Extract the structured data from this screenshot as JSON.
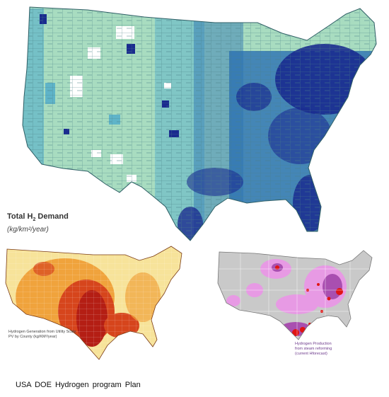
{
  "main_map": {
    "legend_title": "Total H",
    "legend_subscript": "2",
    "legend_title_suffix": " Demand",
    "legend_unit": "(kg/km²/year)",
    "colors": {
      "lowest": "#a8dcc0",
      "low": "#5fb4c9",
      "mid": "#2a70b3",
      "high": "#1a2b8f",
      "none": "#ffffff",
      "border": "#4a7f86"
    }
  },
  "pv_map": {
    "caption": "Hydrogen Generation from Utility Scale PV by County (kg/KM²/year)",
    "colors": {
      "low": "#f7e39a",
      "mid": "#f0a33c",
      "high": "#d6451c",
      "peak": "#b41e14"
    }
  },
  "reform_map": {
    "caption": "Hydrogen Production from steam reforming (current Hforecast)",
    "colors": {
      "base": "#c9c9c9",
      "pink": "#e79ae4",
      "purple": "#a94fb0",
      "dot": "#e01414"
    }
  },
  "footer": {
    "text": "USA DOE  Hydrogen program Plan"
  }
}
